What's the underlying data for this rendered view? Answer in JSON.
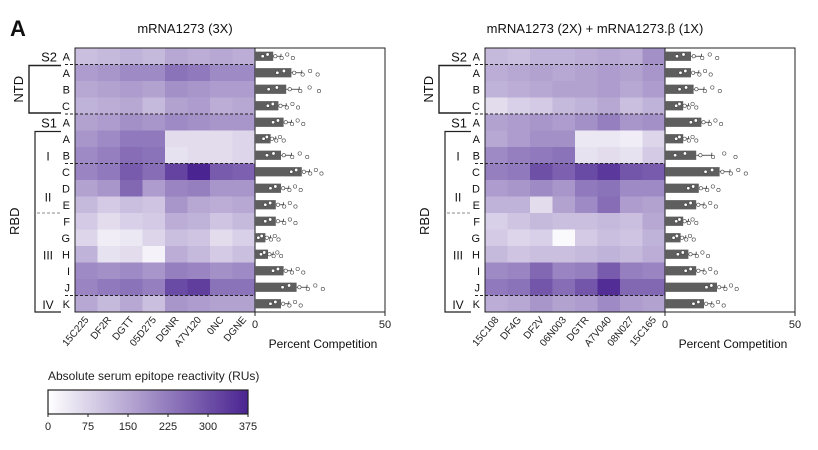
{
  "panel_label": "A",
  "color_scale": {
    "title": "Absolute serum epitope reactivity (RUs)",
    "ticks": [
      "0",
      "75",
      "150",
      "225",
      "300",
      "375"
    ],
    "min": 0,
    "max": 375,
    "color_low": "#ffffff",
    "color_high": "#4a2491"
  },
  "group_labels": {
    "ntd": "NTD",
    "rbd": "RBD",
    "s2": "S2",
    "s1": "S1",
    "i": "I",
    "ii": "II",
    "iii": "III",
    "iv": "IV"
  },
  "chart_data": [
    {
      "type": "heatmap",
      "title": "mRNA1273 (3X)",
      "rows": [
        "A",
        "A",
        "B",
        "C",
        "A",
        "A",
        "B",
        "C",
        "D",
        "E",
        "F",
        "G",
        "H",
        "I",
        "J",
        "K"
      ],
      "columns": [
        "15C225",
        "DF2R",
        "DGTT",
        "05D275",
        "DGNR",
        "A7V120",
        "0NC",
        "DGNE"
      ],
      "values": [
        [
          110,
          120,
          130,
          120,
          150,
          140,
          150,
          140
        ],
        [
          170,
          180,
          200,
          200,
          240,
          230,
          200,
          200
        ],
        [
          150,
          160,
          170,
          160,
          190,
          180,
          170,
          170
        ],
        [
          130,
          140,
          150,
          120,
          160,
          170,
          140,
          150
        ],
        [
          160,
          170,
          190,
          180,
          200,
          190,
          180,
          180
        ],
        [
          180,
          200,
          230,
          230,
          60,
          60,
          60,
          70
        ],
        [
          200,
          220,
          250,
          240,
          50,
          60,
          60,
          70
        ],
        [
          210,
          230,
          280,
          250,
          320,
          375,
          280,
          270
        ],
        [
          160,
          180,
          260,
          170,
          210,
          220,
          180,
          180
        ],
        [
          120,
          90,
          110,
          100,
          180,
          150,
          140,
          150
        ],
        [
          90,
          60,
          80,
          90,
          140,
          130,
          100,
          120
        ],
        [
          70,
          30,
          40,
          70,
          110,
          100,
          60,
          80
        ],
        [
          130,
          50,
          60,
          20,
          140,
          120,
          90,
          110
        ],
        [
          200,
          190,
          200,
          180,
          220,
          210,
          190,
          200
        ],
        [
          210,
          230,
          240,
          220,
          310,
          330,
          240,
          240
        ],
        [
          150,
          120,
          150,
          110,
          180,
          170,
          160,
          160
        ]
      ],
      "bars": {
        "xlabel": "Percent Competition",
        "xlim": [
          0,
          50
        ],
        "xticks": [
          "0",
          "50"
        ],
        "values": [
          7,
          14,
          12,
          9,
          11,
          6,
          10,
          18,
          10,
          8,
          8,
          4,
          5,
          11,
          16,
          10
        ],
        "errors": [
          3,
          4,
          5,
          3,
          3,
          2,
          4,
          3,
          3,
          3,
          3,
          2,
          2,
          3,
          4,
          3
        ]
      }
    },
    {
      "type": "heatmap",
      "title": "mRNA1273 (2X) + mRNA1273.β (1X)",
      "rows": [
        "A",
        "A",
        "B",
        "C",
        "A",
        "A",
        "B",
        "C",
        "D",
        "E",
        "F",
        "G",
        "H",
        "I",
        "J",
        "K"
      ],
      "columns": [
        "15C108",
        "DF4G",
        "DF2V",
        "06N003",
        "DGTR",
        "A7V040",
        "08N027",
        "15C165"
      ],
      "values": [
        [
          120,
          110,
          130,
          130,
          140,
          150,
          140,
          190
        ],
        [
          140,
          150,
          160,
          150,
          160,
          170,
          160,
          180
        ],
        [
          130,
          140,
          150,
          160,
          160,
          170,
          150,
          170
        ],
        [
          60,
          80,
          90,
          120,
          130,
          150,
          110,
          130
        ],
        [
          160,
          170,
          180,
          170,
          190,
          220,
          180,
          190
        ],
        [
          150,
          170,
          190,
          190,
          40,
          40,
          30,
          70
        ],
        [
          200,
          220,
          230,
          240,
          50,
          60,
          50,
          90
        ],
        [
          220,
          230,
          300,
          270,
          310,
          340,
          290,
          280
        ],
        [
          170,
          180,
          200,
          180,
          230,
          240,
          200,
          200
        ],
        [
          130,
          130,
          60,
          160,
          200,
          250,
          170,
          160
        ],
        [
          80,
          100,
          120,
          110,
          110,
          120,
          110,
          150
        ],
        [
          90,
          70,
          80,
          10,
          90,
          110,
          100,
          130
        ],
        [
          120,
          100,
          110,
          110,
          120,
          130,
          120,
          140
        ],
        [
          200,
          210,
          260,
          210,
          220,
          280,
          220,
          210
        ],
        [
          230,
          240,
          290,
          250,
          290,
          360,
          260,
          260
        ],
        [
          140,
          150,
          180,
          160,
          170,
          200,
          170,
          160
        ]
      ],
      "bars": {
        "xlabel": "Percent Competition",
        "xlim": [
          0,
          50
        ],
        "xticks": [
          "0",
          "50"
        ],
        "values": [
          10,
          10,
          11,
          7,
          14,
          7,
          12,
          21,
          13,
          12,
          7,
          6,
          9,
          12,
          20,
          15
        ],
        "errors": [
          4,
          3,
          4,
          2,
          3,
          2,
          6,
          4,
          3,
          3,
          2,
          2,
          3,
          3,
          3,
          3
        ]
      }
    }
  ]
}
